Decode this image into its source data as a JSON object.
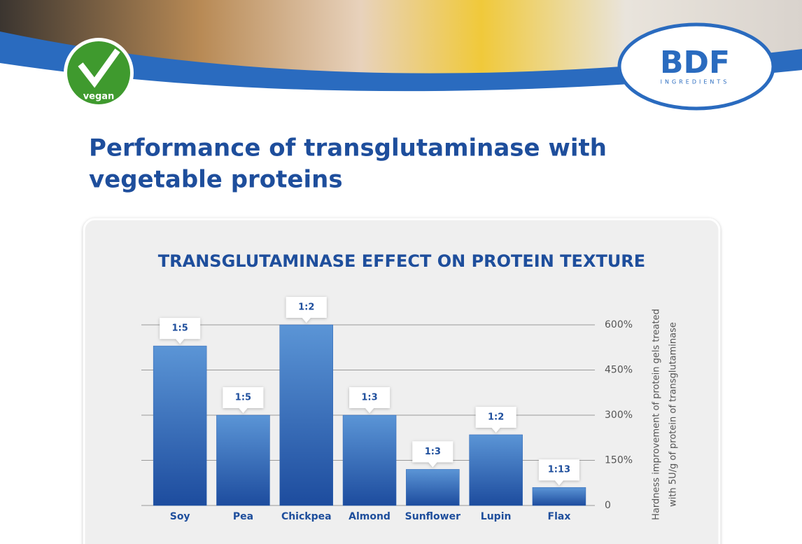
{
  "page": {
    "title_lines": [
      "Performance of transglutaminase with",
      "vegetable proteins"
    ],
    "badge": "vegan",
    "logo": "BDF",
    "logo_sub": "INGREDIENTS"
  },
  "chart_data": {
    "type": "bar",
    "title": "TRANSGLUTAMINASE EFFECT ON PROTEIN TEXTURE",
    "categories": [
      "Soy",
      "Pea",
      "Chickpea",
      "Almond",
      "Sunflower",
      "Lupin",
      "Flax"
    ],
    "values": [
      530,
      300,
      600,
      300,
      120,
      235,
      60
    ],
    "ratios": [
      "1:5",
      "1:5",
      "1:2",
      "1:3",
      "1:3",
      "1:2",
      "1:13"
    ],
    "color": "#2b63b3",
    "ylim": [
      0,
      600
    ],
    "yticks": [
      0,
      {
        "value": 150,
        "label": "150%"
      },
      {
        "value": 300,
        "label": "300%"
      },
      {
        "value": 450,
        "label": "450%"
      },
      {
        "value": 600,
        "label": "600%"
      }
    ],
    "y_label_lines": [
      "Hardness improvement of protein gels treated",
      "with 5U/g of protein of transglutaminase"
    ],
    "grid": true
  }
}
